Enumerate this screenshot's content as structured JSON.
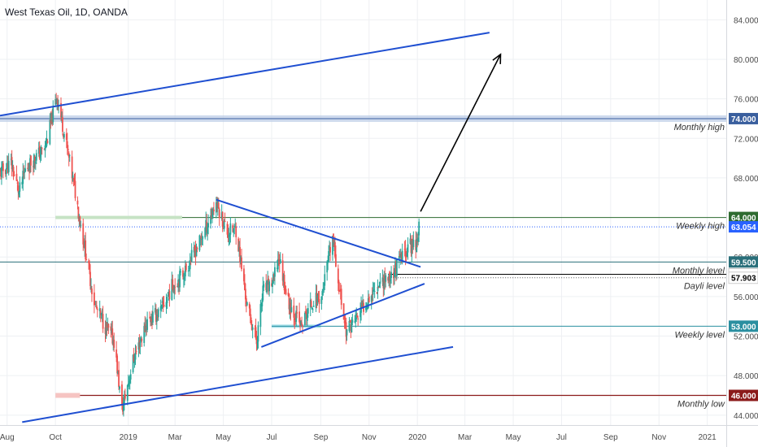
{
  "chart_data": {
    "type": "candlestick",
    "title": "West Texas Oil, 1D, OANDA",
    "symbol": "West Texas Oil",
    "interval": "1D",
    "source": "OANDA",
    "colors": {
      "up": "#26a69a",
      "down": "#ef5350",
      "trendline": "#1f4fd1",
      "arrow": "#000000",
      "grid": "#eef0f3",
      "axis_text": "#4a4a4a"
    },
    "ylim": [
      43.0,
      86.0
    ],
    "yticks": [
      44,
      48,
      52,
      56,
      60,
      64,
      68,
      72,
      76,
      80,
      84
    ],
    "ytick_labels": [
      "44.000",
      "48.000",
      "52.000",
      "56.000",
      "60.000",
      "64.000",
      "68.000",
      "72.000",
      "76.000",
      "80.000",
      "84.000"
    ],
    "x_domain": [
      "2018-07-23",
      "2021-01-25"
    ],
    "xticks": [
      {
        "date": "2018-08-01",
        "label": "Aug"
      },
      {
        "date": "2018-10-01",
        "label": "Oct"
      },
      {
        "date": "2019-01-01",
        "label": "2019"
      },
      {
        "date": "2019-03-01",
        "label": "Mar"
      },
      {
        "date": "2019-05-01",
        "label": "May"
      },
      {
        "date": "2019-07-01",
        "label": "Jul"
      },
      {
        "date": "2019-09-01",
        "label": "Sep"
      },
      {
        "date": "2019-11-01",
        "label": "Nov"
      },
      {
        "date": "2020-01-01",
        "label": "2020"
      },
      {
        "date": "2020-03-01",
        "label": "Mar"
      },
      {
        "date": "2020-05-01",
        "label": "May"
      },
      {
        "date": "2020-07-01",
        "label": "Jul"
      },
      {
        "date": "2020-09-01",
        "label": "Sep"
      },
      {
        "date": "2020-11-01",
        "label": "Nov"
      },
      {
        "date": "2021-01-01",
        "label": "2021"
      }
    ],
    "price_path": [
      [
        "2018-07-23",
        68.5
      ],
      [
        "2018-08-06",
        69.5
      ],
      [
        "2018-08-16",
        66.5
      ],
      [
        "2018-08-24",
        68.8
      ],
      [
        "2018-09-04",
        70.0
      ],
      [
        "2018-09-18",
        71.0
      ],
      [
        "2018-10-03",
        76.3
      ],
      [
        "2018-10-12",
        72.5
      ],
      [
        "2018-10-25",
        67.0
      ],
      [
        "2018-11-08",
        60.5
      ],
      [
        "2018-11-20",
        55.0
      ],
      [
        "2018-12-03",
        53.0
      ],
      [
        "2018-12-14",
        51.5
      ],
      [
        "2018-12-24",
        44.5
      ],
      [
        "2019-01-07",
        49.5
      ],
      [
        "2019-01-25",
        53.5
      ],
      [
        "2019-02-11",
        54.5
      ],
      [
        "2019-02-25",
        57.0
      ],
      [
        "2019-03-13",
        58.5
      ],
      [
        "2019-04-01",
        61.5
      ],
      [
        "2019-04-22",
        65.5
      ],
      [
        "2019-05-06",
        62.5
      ],
      [
        "2019-05-17",
        62.8
      ],
      [
        "2019-05-31",
        55.0
      ],
      [
        "2019-06-12",
        51.5
      ],
      [
        "2019-06-20",
        56.5
      ],
      [
        "2019-07-03",
        57.5
      ],
      [
        "2019-07-10",
        60.0
      ],
      [
        "2019-07-22",
        55.5
      ],
      [
        "2019-08-07",
        53.0
      ],
      [
        "2019-08-22",
        55.5
      ],
      [
        "2019-09-02",
        56.0
      ],
      [
        "2019-09-16",
        62.0
      ],
      [
        "2019-09-25",
        56.5
      ],
      [
        "2019-10-03",
        52.5
      ],
      [
        "2019-10-18",
        54.0
      ],
      [
        "2019-11-01",
        56.0
      ],
      [
        "2019-11-15",
        57.5
      ],
      [
        "2019-11-28",
        58.0
      ],
      [
        "2019-12-09",
        59.5
      ],
      [
        "2019-12-20",
        61.0
      ],
      [
        "2019-12-31",
        61.5
      ],
      [
        "2020-01-03",
        63.05
      ]
    ],
    "horizontal_levels": [
      {
        "price": 74.0,
        "label": "Monthly high",
        "badge": "74.000",
        "color": "#3a5f9e",
        "zone": true
      },
      {
        "price": 64.0,
        "label": "Weekly high",
        "badge": "64.000",
        "color": "#2e6b30",
        "zone": false
      },
      {
        "price": 63.054,
        "label": "",
        "badge": "63.054",
        "color": "#2962ff",
        "dotted": true,
        "current": true
      },
      {
        "price": 59.5,
        "label": "Monthly level",
        "badge": "59.500",
        "color": "#2a6f7a",
        "zone": false
      },
      {
        "price": 58.25,
        "label": "",
        "badge": "58.250",
        "color": "#000000",
        "zone": false
      },
      {
        "price": 57.903,
        "label": "Dayli level",
        "badge": "57.903",
        "color": "#000000",
        "dotted": true
      },
      {
        "price": 53.0,
        "label": "Weekly level",
        "badge": "53.000",
        "color": "#2a8fa0",
        "zone": false
      },
      {
        "price": 46.0,
        "label": "Monthly low",
        "badge": "46.000",
        "color": "#8b1a1a",
        "zone": false
      }
    ],
    "trendlines": [
      {
        "from": [
          "2018-07-23",
          74.3
        ],
        "to": [
          "2020-04-01",
          82.7
        ]
      },
      {
        "from": [
          "2018-08-20",
          43.3
        ],
        "to": [
          "2020-02-15",
          50.9
        ]
      },
      {
        "from": [
          "2019-04-22",
          65.8
        ],
        "to": [
          "2020-01-05",
          59.0
        ]
      },
      {
        "from": [
          "2019-06-18",
          50.9
        ],
        "to": [
          "2020-01-10",
          57.3
        ]
      }
    ],
    "arrow": {
      "from": [
        "2020-01-05",
        64.6
      ],
      "to": [
        "2020-04-15",
        80.5
      ]
    },
    "grid": true,
    "legend": "top-left"
  }
}
